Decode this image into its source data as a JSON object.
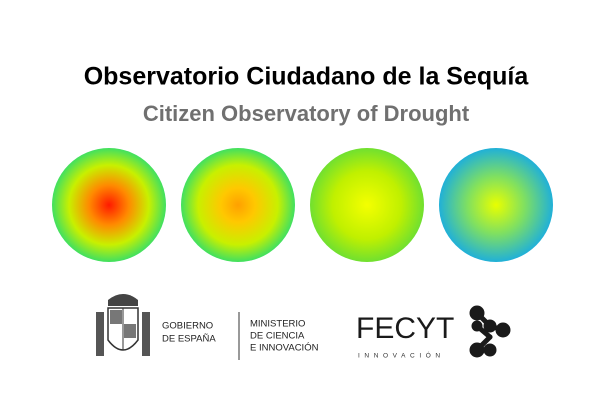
{
  "header": {
    "title": "Observatorio Ciudadano de la Sequía",
    "subtitle": "Citizen Observatory of Drought"
  },
  "logos": {
    "gobierno": [
      "GOBIERNO",
      "DE ESPAÑA"
    ],
    "ministerio": [
      "MINISTERIO",
      "DE CIENCIA",
      "E INNOVACIÓN"
    ],
    "fecyt": {
      "name": "FECYT",
      "tagline": "INNOVACIÓN"
    }
  }
}
